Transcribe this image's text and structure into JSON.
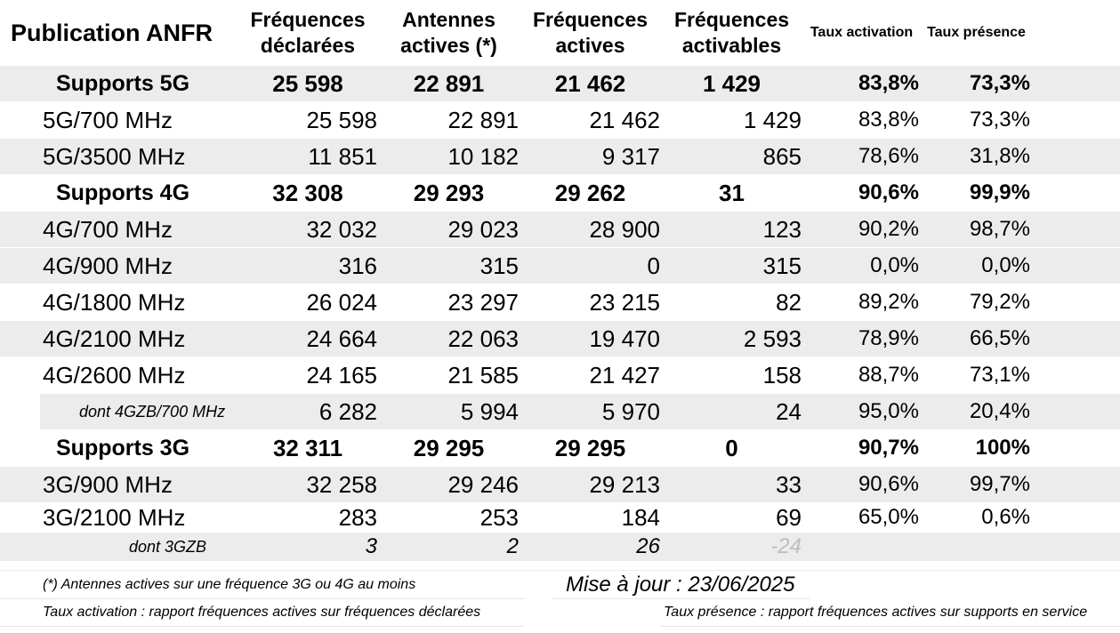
{
  "header": {
    "title": "Publication ANFR",
    "frequences_declarees": "Fréquences déclarées",
    "antennes_actives": "Antennes actives (*)",
    "frequences_actives": "Fréquences actives",
    "frequences_activables": "Fréquences activables",
    "taux_activation": "Taux activation",
    "taux_presence": "Taux présence"
  },
  "rows": [
    {
      "label": "Supports 5G",
      "declarees": "25 598",
      "antennes": "22 891",
      "actives": "21 462",
      "activables": "1 429",
      "taux_activation": "83,8%",
      "taux_presence": "73,3%"
    },
    {
      "label": "5G/700 MHz",
      "declarees": "25 598",
      "antennes": "22 891",
      "actives": "21 462",
      "activables": "1 429",
      "taux_activation": "83,8%",
      "taux_presence": "73,3%"
    },
    {
      "label": "5G/3500 MHz",
      "declarees": "11 851",
      "antennes": "10 182",
      "actives": "9 317",
      "activables": "865",
      "taux_activation": "78,6%",
      "taux_presence": "31,8%"
    },
    {
      "label": "Supports 4G",
      "declarees": "32 308",
      "antennes": "29 293",
      "actives": "29 262",
      "activables": "31",
      "taux_activation": "90,6%",
      "taux_presence": "99,9%"
    },
    {
      "label": "4G/700 MHz",
      "declarees": "32 032",
      "antennes": "29 023",
      "actives": "28 900",
      "activables": "123",
      "taux_activation": "90,2%",
      "taux_presence": "98,7%"
    },
    {
      "label": "4G/900 MHz",
      "declarees": "316",
      "antennes": "315",
      "actives": "0",
      "activables": "315",
      "taux_activation": "0,0%",
      "taux_presence": "0,0%"
    },
    {
      "label": "4G/1800 MHz",
      "declarees": "26 024",
      "antennes": "23 297",
      "actives": "23 215",
      "activables": "82",
      "taux_activation": "89,2%",
      "taux_presence": "79,2%"
    },
    {
      "label": "4G/2100 MHz",
      "declarees": "24 664",
      "antennes": "22 063",
      "actives": "19 470",
      "activables": "2 593",
      "taux_activation": "78,9%",
      "taux_presence": "66,5%"
    },
    {
      "label": "4G/2600 MHz",
      "declarees": "24 165",
      "antennes": "21 585",
      "actives": "21 427",
      "activables": "158",
      "taux_activation": "88,7%",
      "taux_presence": "73,1%"
    },
    {
      "label": "dont 4GZB/700 MHz",
      "declarees": "6 282",
      "antennes": "5 994",
      "actives": "5 970",
      "activables": "24",
      "taux_activation": "95,0%",
      "taux_presence": "20,4%"
    },
    {
      "label": "Supports 3G",
      "declarees": "32 311",
      "antennes": "29 295",
      "actives": "29 295",
      "activables": "0",
      "taux_activation": "90,7%",
      "taux_presence": "100%"
    },
    {
      "label": "3G/900 MHz",
      "declarees": "32 258",
      "antennes": "29 246",
      "actives": "29 213",
      "activables": "33",
      "taux_activation": "90,6%",
      "taux_presence": "99,7%"
    },
    {
      "label": "3G/2100 MHz",
      "declarees": "283",
      "antennes": "253",
      "actives": "184",
      "activables": "69",
      "taux_activation": "65,0%",
      "taux_presence": "0,6%"
    },
    {
      "label": "dont 3GZB",
      "declarees": "3",
      "antennes": "2",
      "actives": "26",
      "activables": "-24"
    }
  ],
  "footer": {
    "note_antennes": "(*) Antennes actives sur une fréquence 3G ou 4G au moins",
    "mise_a_jour": "Mise à jour : 23/06/2025",
    "def_taux_activation": "Taux activation : rapport fréquences actives sur fréquences déclarées",
    "def_taux_presence": "Taux présence : rapport fréquences actives sur supports en service"
  },
  "colors": {
    "row_shade": "#ececec",
    "text": "#000000",
    "muted_value": "#bdbdbd"
  }
}
